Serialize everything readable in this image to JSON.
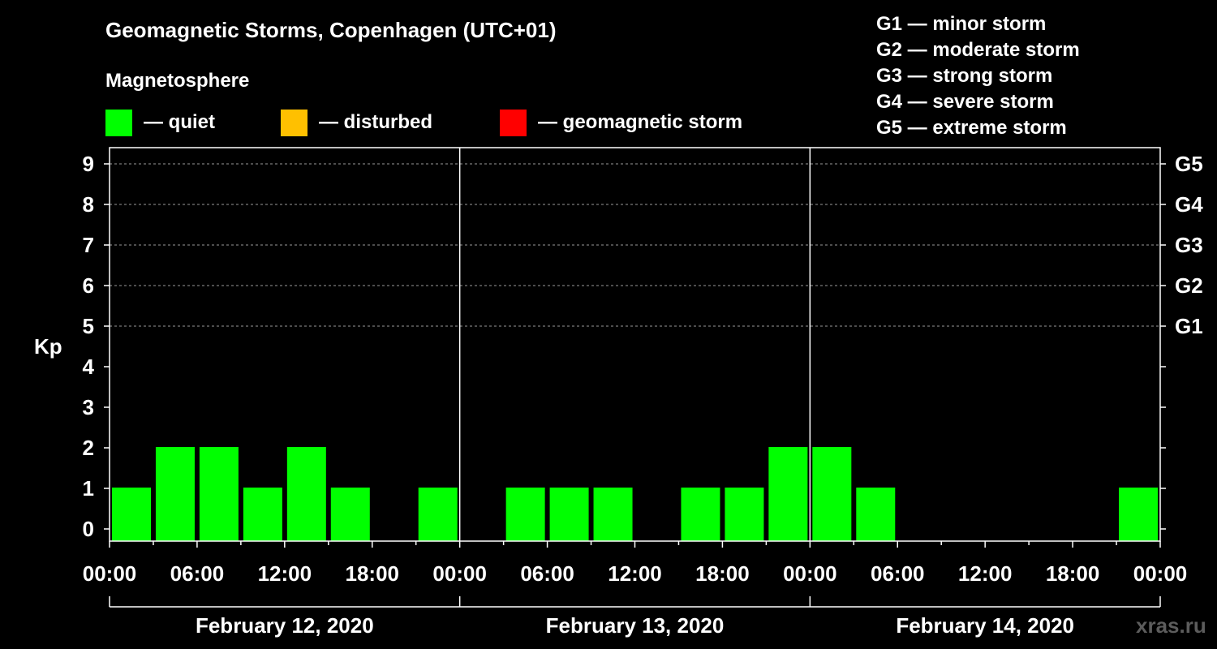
{
  "chart_data": {
    "type": "bar",
    "title": "Geomagnetic Storms, Copenhagen (UTC+01)",
    "ylabel": "Kp",
    "ylim": [
      0,
      9
    ],
    "y_ticks": [
      "0",
      "1",
      "2",
      "3",
      "4",
      "5",
      "6",
      "7",
      "8",
      "9"
    ],
    "right_axis_labels": [
      {
        "kp": 5,
        "label": "G1"
      },
      {
        "kp": 6,
        "label": "G2"
      },
      {
        "kp": 7,
        "label": "G3"
      },
      {
        "kp": 8,
        "label": "G4"
      },
      {
        "kp": 9,
        "label": "G5"
      }
    ],
    "x_tick_labels": [
      "00:00",
      "06:00",
      "12:00",
      "18:00",
      "00:00",
      "06:00",
      "12:00",
      "18:00",
      "00:00",
      "06:00",
      "12:00",
      "18:00",
      "00:00"
    ],
    "days": [
      "February 12, 2020",
      "February 13, 2020",
      "February 14, 2020"
    ],
    "bar_hours_utc1": [
      0,
      3,
      6,
      9,
      12,
      15,
      18,
      21,
      24,
      27,
      30,
      33,
      36,
      39,
      42,
      45,
      48,
      51,
      54,
      57,
      60,
      63,
      66,
      69
    ],
    "values": [
      1,
      2,
      2,
      1,
      2,
      1,
      0,
      1,
      0,
      1,
      1,
      1,
      0,
      1,
      1,
      2,
      2,
      1,
      0,
      0,
      0,
      0,
      0,
      1
    ],
    "grid": true
  },
  "magnetosphere": {
    "title": "Magnetosphere",
    "items": [
      {
        "label": "— quiet",
        "color": "#00ff00"
      },
      {
        "label": "— disturbed",
        "color": "#ffc000"
      },
      {
        "label": "— geomagnetic storm",
        "color": "#ff0000"
      }
    ]
  },
  "storm_scale": [
    "G1 — minor storm",
    "G2 — moderate storm",
    "G3 — strong storm",
    "G4 — severe storm",
    "G5 — extreme storm"
  ],
  "watermark": "xras.ru"
}
